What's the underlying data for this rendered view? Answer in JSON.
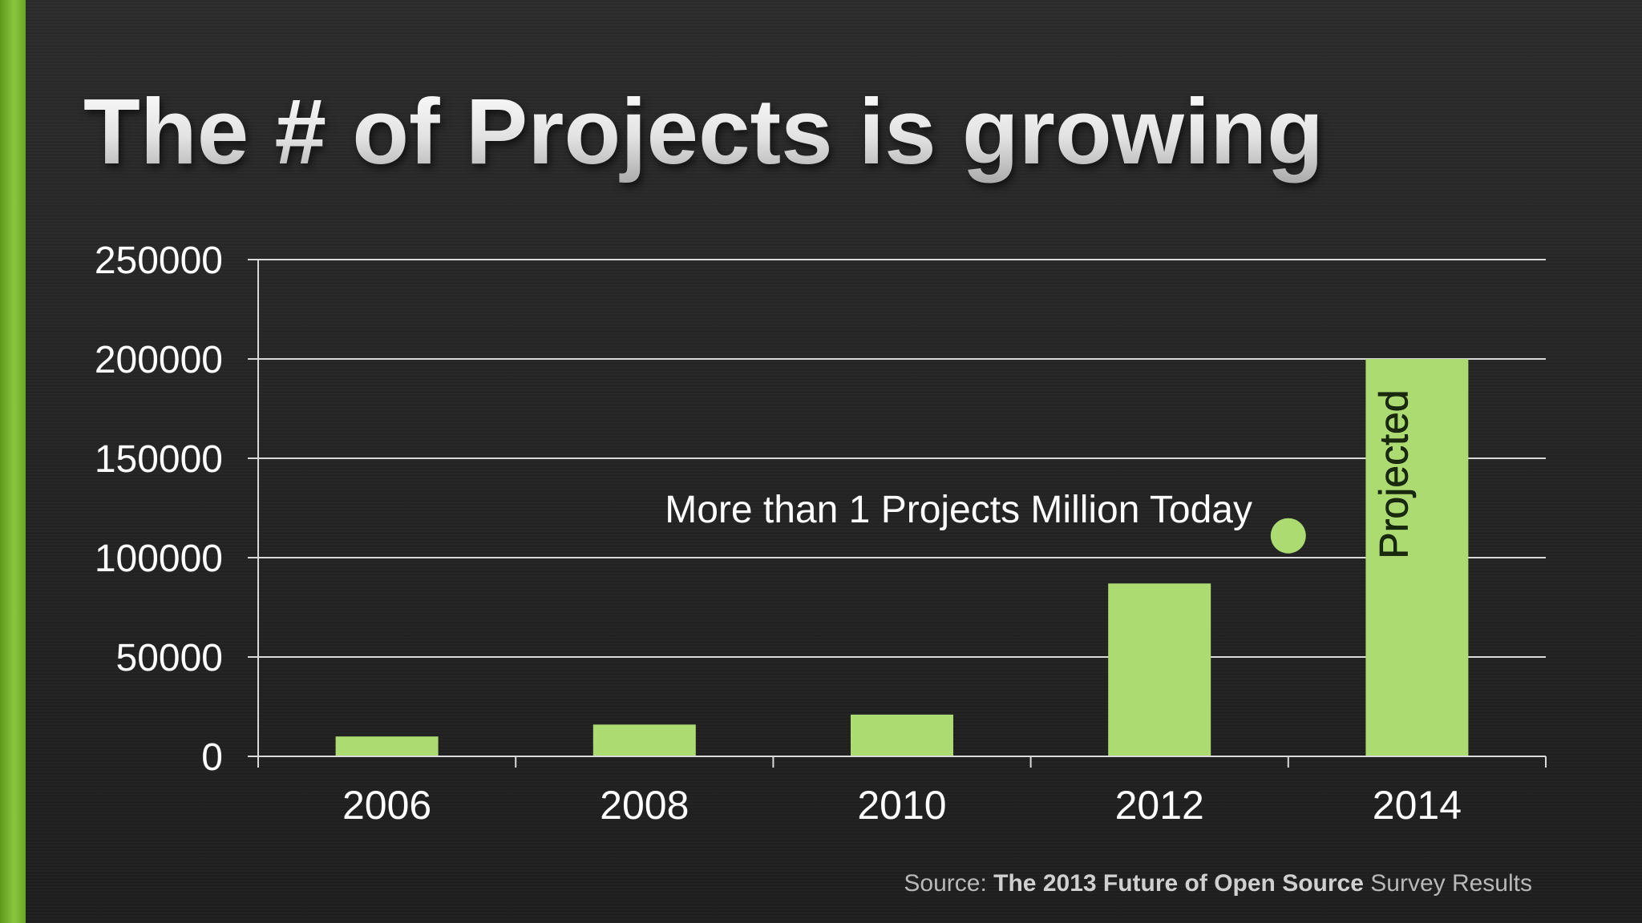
{
  "slide": {
    "title": "The # of Projects is growing",
    "source_prefix": "Source: ",
    "source_title": "The 2013 Future of Open Source",
    "source_suffix": " Survey Results"
  },
  "colors": {
    "accent": "#8cc63f",
    "bar": "#acdb72",
    "gridline": "#d9d9d9",
    "text": "#ffffff"
  },
  "chart_data": {
    "type": "bar",
    "categories": [
      "2006",
      "2008",
      "2010",
      "2012",
      "2014"
    ],
    "values": [
      10000,
      16000,
      21000,
      87000,
      200000
    ],
    "ylim": [
      0,
      250000
    ],
    "yticks": [
      "0",
      "50000",
      "100000",
      "150000",
      "200000",
      "250000"
    ],
    "title": "",
    "xlabel": "",
    "ylabel": "",
    "grid": true,
    "bar_labels": {
      "2014": "Projected"
    },
    "annotation": {
      "text": "More than 1 Projects Million Today",
      "point": {
        "x_between": [
          "2012",
          "2014"
        ],
        "y": 111000
      }
    }
  }
}
